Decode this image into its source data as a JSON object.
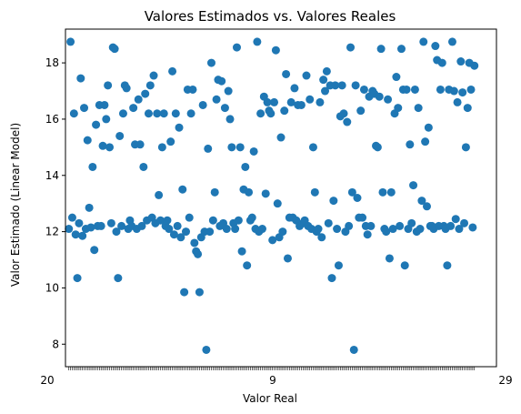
{
  "chart_data": {
    "type": "scatter",
    "title": "Valores Estimados vs. Valores Reales",
    "xlabel": "Valor Real",
    "ylabel": "Valor Estimado (Linear Model)",
    "ylim": [
      7.2,
      19.2
    ],
    "yticks": [
      8,
      10,
      12,
      14,
      16,
      18
    ],
    "xlim": [
      -2,
      252
    ],
    "x_tick_labels": [
      "20",
      "9",
      "29"
    ],
    "grid": false,
    "marker_color": "#1f77b4",
    "points": [
      [
        0,
        12.1
      ],
      [
        1,
        18.75
      ],
      [
        2,
        12.5
      ],
      [
        3,
        16.2
      ],
      [
        4,
        11.9
      ],
      [
        5,
        10.35
      ],
      [
        6,
        12.3
      ],
      [
        7,
        17.45
      ],
      [
        8,
        11.85
      ],
      [
        9,
        16.4
      ],
      [
        10,
        12.1
      ],
      [
        11,
        15.25
      ],
      [
        12,
        12.85
      ],
      [
        13,
        12.15
      ],
      [
        14,
        14.3
      ],
      [
        15,
        11.35
      ],
      [
        16,
        15.8
      ],
      [
        17,
        12.2
      ],
      [
        18,
        16.5
      ],
      [
        19,
        12.2
      ],
      [
        20,
        15.05
      ],
      [
        21,
        16.5
      ],
      [
        22,
        16.0
      ],
      [
        23,
        17.2
      ],
      [
        24,
        15.0
      ],
      [
        25,
        12.3
      ],
      [
        26,
        18.55
      ],
      [
        27,
        18.5
      ],
      [
        28,
        12.0
      ],
      [
        29,
        10.35
      ],
      [
        30,
        15.4
      ],
      [
        31,
        12.2
      ],
      [
        32,
        16.2
      ],
      [
        33,
        17.2
      ],
      [
        34,
        17.1
      ],
      [
        35,
        12.1
      ],
      [
        36,
        12.4
      ],
      [
        37,
        12.2
      ],
      [
        38,
        16.4
      ],
      [
        39,
        15.1
      ],
      [
        40,
        12.1
      ],
      [
        41,
        16.7
      ],
      [
        42,
        15.1
      ],
      [
        43,
        12.2
      ],
      [
        44,
        14.3
      ],
      [
        45,
        16.9
      ],
      [
        46,
        12.4
      ],
      [
        47,
        16.2
      ],
      [
        48,
        17.2
      ],
      [
        49,
        12.5
      ],
      [
        50,
        17.55
      ],
      [
        51,
        12.3
      ],
      [
        52,
        16.2
      ],
      [
        53,
        13.3
      ],
      [
        54,
        12.4
      ],
      [
        55,
        15.0
      ],
      [
        56,
        16.2
      ],
      [
        57,
        12.2
      ],
      [
        58,
        12.4
      ],
      [
        59,
        12.1
      ],
      [
        60,
        15.2
      ],
      [
        61,
        17.7
      ],
      [
        62,
        11.9
      ],
      [
        63,
        16.2
      ],
      [
        64,
        12.2
      ],
      [
        65,
        15.7
      ],
      [
        66,
        11.8
      ],
      [
        67,
        13.5
      ],
      [
        68,
        9.85
      ],
      [
        69,
        12.0
      ],
      [
        70,
        17.05
      ],
      [
        71,
        12.5
      ],
      [
        72,
        16.2
      ],
      [
        73,
        17.05
      ],
      [
        74,
        11.6
      ],
      [
        75,
        11.3
      ],
      [
        76,
        11.2
      ],
      [
        77,
        9.85
      ],
      [
        78,
        11.8
      ],
      [
        79,
        16.5
      ],
      [
        80,
        12.0
      ],
      [
        81,
        7.8
      ],
      [
        82,
        14.95
      ],
      [
        83,
        12.0
      ],
      [
        84,
        18.0
      ],
      [
        85,
        12.4
      ],
      [
        86,
        13.4
      ],
      [
        87,
        16.7
      ],
      [
        88,
        17.4
      ],
      [
        89,
        12.2
      ],
      [
        90,
        17.35
      ],
      [
        91,
        12.3
      ],
      [
        92,
        16.4
      ],
      [
        93,
        12.1
      ],
      [
        94,
        17.0
      ],
      [
        95,
        16.0
      ],
      [
        96,
        15.0
      ],
      [
        97,
        12.3
      ],
      [
        98,
        12.1
      ],
      [
        99,
        18.55
      ],
      [
        100,
        12.4
      ],
      [
        101,
        15.0
      ],
      [
        102,
        11.3
      ],
      [
        103,
        13.5
      ],
      [
        104,
        14.3
      ],
      [
        105,
        10.8
      ],
      [
        106,
        13.4
      ],
      [
        107,
        12.4
      ],
      [
        108,
        12.5
      ],
      [
        109,
        14.85
      ],
      [
        110,
        12.1
      ],
      [
        111,
        18.75
      ],
      [
        112,
        12.0
      ],
      [
        113,
        16.2
      ],
      [
        114,
        12.1
      ],
      [
        115,
        16.8
      ],
      [
        116,
        13.35
      ],
      [
        117,
        16.6
      ],
      [
        118,
        16.3
      ],
      [
        119,
        16.2
      ],
      [
        120,
        11.7
      ],
      [
        121,
        16.6
      ],
      [
        122,
        18.45
      ],
      [
        123,
        13.0
      ],
      [
        124,
        11.8
      ],
      [
        125,
        15.35
      ],
      [
        126,
        12.0
      ],
      [
        127,
        16.3
      ],
      [
        128,
        17.6
      ],
      [
        129,
        11.05
      ],
      [
        130,
        12.5
      ],
      [
        131,
        16.6
      ],
      [
        132,
        12.5
      ],
      [
        133,
        17.1
      ],
      [
        134,
        12.4
      ],
      [
        135,
        16.5
      ],
      [
        136,
        12.2
      ],
      [
        137,
        16.5
      ],
      [
        138,
        12.3
      ],
      [
        139,
        12.4
      ],
      [
        140,
        17.55
      ],
      [
        141,
        12.2
      ],
      [
        142,
        16.7
      ],
      [
        143,
        12.1
      ],
      [
        144,
        15.0
      ],
      [
        145,
        13.4
      ],
      [
        146,
        12.0
      ],
      [
        147,
        12.1
      ],
      [
        148,
        16.6
      ],
      [
        149,
        11.8
      ],
      [
        150,
        17.4
      ],
      [
        151,
        17.0
      ],
      [
        152,
        17.7
      ],
      [
        153,
        12.3
      ],
      [
        154,
        17.2
      ],
      [
        155,
        10.35
      ],
      [
        156,
        13.1
      ],
      [
        157,
        17.2
      ],
      [
        158,
        12.1
      ],
      [
        159,
        10.8
      ],
      [
        160,
        16.1
      ],
      [
        161,
        17.2
      ],
      [
        162,
        16.2
      ],
      [
        163,
        12.0
      ],
      [
        164,
        15.9
      ],
      [
        165,
        12.2
      ],
      [
        166,
        18.55
      ],
      [
        167,
        13.4
      ],
      [
        168,
        7.8
      ],
      [
        169,
        17.2
      ],
      [
        170,
        13.2
      ],
      [
        171,
        12.5
      ],
      [
        172,
        16.3
      ],
      [
        173,
        12.5
      ],
      [
        174,
        17.05
      ],
      [
        175,
        12.2
      ],
      [
        176,
        11.9
      ],
      [
        177,
        16.8
      ],
      [
        178,
        12.2
      ],
      [
        179,
        17.0
      ],
      [
        180,
        16.9
      ],
      [
        181,
        15.05
      ],
      [
        182,
        15.0
      ],
      [
        183,
        16.8
      ],
      [
        184,
        18.5
      ],
      [
        185,
        13.4
      ],
      [
        186,
        12.1
      ],
      [
        187,
        12.0
      ],
      [
        188,
        16.7
      ],
      [
        189,
        11.05
      ],
      [
        190,
        13.4
      ],
      [
        191,
        12.1
      ],
      [
        192,
        16.2
      ],
      [
        193,
        17.5
      ],
      [
        194,
        16.4
      ],
      [
        195,
        12.2
      ],
      [
        196,
        18.5
      ],
      [
        197,
        17.05
      ],
      [
        198,
        10.8
      ],
      [
        199,
        17.05
      ],
      [
        200,
        12.1
      ],
      [
        201,
        15.1
      ],
      [
        202,
        12.3
      ],
      [
        203,
        13.65
      ],
      [
        204,
        17.05
      ],
      [
        205,
        12.0
      ],
      [
        206,
        16.4
      ],
      [
        207,
        12.1
      ],
      [
        208,
        13.1
      ],
      [
        209,
        18.75
      ],
      [
        210,
        15.2
      ],
      [
        211,
        12.9
      ],
      [
        212,
        15.7
      ],
      [
        213,
        12.2
      ],
      [
        214,
        12.2
      ],
      [
        215,
        12.1
      ],
      [
        216,
        18.6
      ],
      [
        217,
        18.1
      ],
      [
        218,
        12.2
      ],
      [
        219,
        17.05
      ],
      [
        220,
        18.0
      ],
      [
        221,
        12.2
      ],
      [
        222,
        12.1
      ],
      [
        223,
        10.8
      ],
      [
        224,
        17.05
      ],
      [
        225,
        12.2
      ],
      [
        226,
        18.75
      ],
      [
        227,
        17.0
      ],
      [
        228,
        12.45
      ],
      [
        229,
        16.6
      ],
      [
        230,
        12.1
      ],
      [
        231,
        18.05
      ],
      [
        232,
        16.95
      ],
      [
        233,
        12.3
      ],
      [
        234,
        15.0
      ],
      [
        235,
        16.4
      ],
      [
        236,
        18.0
      ],
      [
        237,
        17.05
      ],
      [
        238,
        12.15
      ],
      [
        239,
        17.9
      ]
    ]
  }
}
